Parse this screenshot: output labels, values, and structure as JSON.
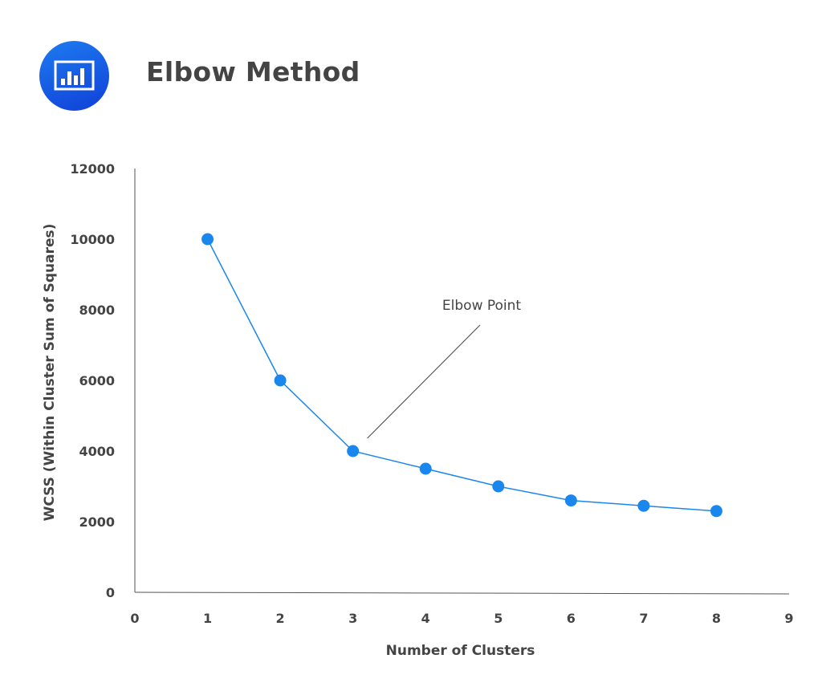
{
  "header": {
    "title": "Elbow Method",
    "icon": "bar-chart-icon"
  },
  "chart_data": {
    "type": "line",
    "title": "Elbow Method",
    "xlabel": "Number of Clusters",
    "ylabel": "WCSS (Within Cluster Sum of Squares)",
    "x": [
      1,
      2,
      3,
      4,
      5,
      6,
      7,
      8
    ],
    "values": [
      10000,
      6000,
      4000,
      3500,
      3000,
      2600,
      2450,
      2300
    ],
    "xlim": [
      0,
      9
    ],
    "ylim": [
      0,
      12000
    ],
    "xticks": [
      "0",
      "1",
      "2",
      "3",
      "4",
      "5",
      "6",
      "7",
      "8",
      "9"
    ],
    "yticks": [
      "0",
      "2000",
      "4000",
      "6000",
      "8000",
      "10000",
      "12000"
    ],
    "grid": false,
    "annotation": {
      "text": "Elbow Point",
      "x": 3,
      "y": 4000
    },
    "color": "#1a87ee"
  }
}
